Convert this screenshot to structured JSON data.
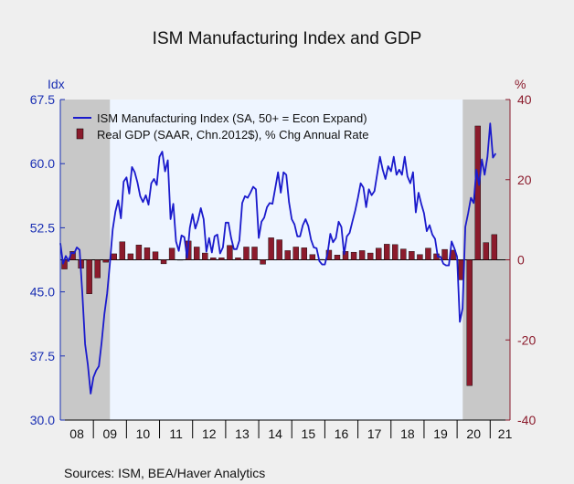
{
  "chart_data": {
    "type": "line+bar",
    "title": "ISM Manufacturing Index and GDP",
    "source": "Sources:   ISM, BEA/Haver Analytics",
    "left_axis": {
      "unit": "Idx",
      "range": [
        30,
        67.5
      ],
      "ticks": [
        "67.5",
        "60.0",
        "52.5",
        "45.0",
        "37.5",
        "30.0"
      ],
      "color": "#1a2fb3"
    },
    "right_axis": {
      "unit": "%",
      "range": [
        -40,
        40
      ],
      "ticks": [
        "40",
        "20",
        "0",
        "-20",
        "-40"
      ],
      "color": "#8b1b2c"
    },
    "x_axis": {
      "range": [
        2008.0,
        2021.6
      ],
      "labels": [
        "08",
        "09",
        "10",
        "11",
        "12",
        "13",
        "14",
        "15",
        "16",
        "17",
        "18",
        "19",
        "20",
        "21"
      ]
    },
    "recessions": [
      [
        2008.0,
        2009.5
      ],
      [
        2020.17,
        2021.6
      ]
    ],
    "plot_background": "#eef5ff",
    "recession_color": "#c8c8c8",
    "series": [
      {
        "name": "ISM Manufacturing Index (SA, 50+ = Econ Expand)",
        "kind": "line",
        "axis": "left",
        "color": "#1a1acc",
        "x_start": 2008.0,
        "x_step": 0.08333,
        "values": [
          50.7,
          48.3,
          49.2,
          48.6,
          49.6,
          49.5,
          50.2,
          49.9,
          44.8,
          38.9,
          36.5,
          33.1,
          35.0,
          35.8,
          36.3,
          39.1,
          42.4,
          44.8,
          48.4,
          52.3,
          54.4,
          55.7,
          53.6,
          57.9,
          58.4,
          56.5,
          59.6,
          59.0,
          57.8,
          56.2,
          55.5,
          56.3,
          55.2,
          57.7,
          58.2,
          57.5,
          60.8,
          61.4,
          59.1,
          60.4,
          53.5,
          55.3,
          50.9,
          49.8,
          51.6,
          51.4,
          49.0,
          52.5,
          54.1,
          52.4,
          53.4,
          54.8,
          53.5,
          49.7,
          51.3,
          49.6,
          51.5,
          51.7,
          49.5,
          50.2,
          53.1,
          53.1,
          51.3,
          50.0,
          50.0,
          51.0,
          55.4,
          56.2,
          56.0,
          56.6,
          57.3,
          57.0,
          51.3,
          53.2,
          53.7,
          54.9,
          55.4,
          55.3,
          57.1,
          59.0,
          56.6,
          59.0,
          58.7,
          55.5,
          53.5,
          52.9,
          51.5,
          51.5,
          52.8,
          53.5,
          52.7,
          51.1,
          50.2,
          50.1,
          48.6,
          48.2,
          48.2,
          49.5,
          51.8,
          50.8,
          51.3,
          53.2,
          52.6,
          49.4,
          51.5,
          51.9,
          53.2,
          54.5,
          56.0,
          57.7,
          57.2,
          54.9,
          57.0,
          56.3,
          56.8,
          58.8,
          60.8,
          59.3,
          58.2,
          59.7,
          59.1,
          60.8,
          58.7,
          59.3,
          58.7,
          60.8,
          58.5,
          57.7,
          59.0,
          54.3,
          56.6,
          55.3,
          54.2,
          52.1,
          52.8,
          51.7,
          51.2,
          49.1,
          49.1,
          48.3,
          48.1,
          48.1,
          50.9,
          50.1,
          49.1,
          41.5,
          43.1,
          52.6,
          54.2,
          56.0,
          55.4,
          59.3,
          57.5,
          60.5,
          58.7,
          60.8,
          64.7,
          60.7,
          61.2
        ]
      },
      {
        "name": "Real GDP (SAAR, Chn.2012$), % Chg Annual Rate",
        "kind": "bar",
        "axis": "right",
        "color": "#8b1b2c",
        "x_start": 2008.125,
        "x_step": 0.25,
        "values": [
          -2.3,
          2.1,
          -2.1,
          -8.5,
          -4.5,
          -0.6,
          1.5,
          4.5,
          1.5,
          3.7,
          3.0,
          2.0,
          -1.0,
          2.9,
          -0.1,
          4.7,
          3.2,
          1.7,
          0.5,
          0.5,
          3.6,
          0.5,
          3.2,
          3.2,
          -1.1,
          5.5,
          5.0,
          2.3,
          3.2,
          3.0,
          1.3,
          0.1,
          2.4,
          1.2,
          2.1,
          1.9,
          2.3,
          1.7,
          2.9,
          3.9,
          3.8,
          2.7,
          2.1,
          1.3,
          2.9,
          1.5,
          2.6,
          2.4,
          -5.0,
          -31.4,
          33.4,
          4.3,
          6.3
        ]
      }
    ]
  }
}
